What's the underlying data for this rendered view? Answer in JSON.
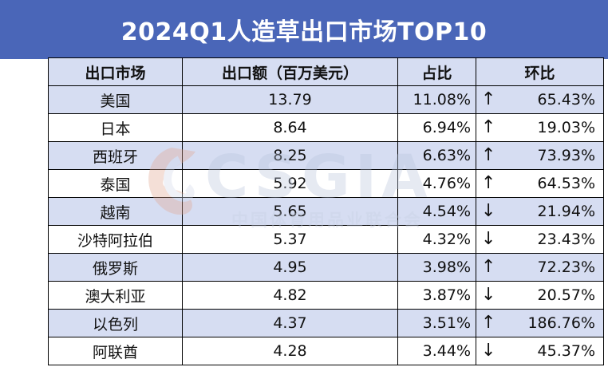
{
  "title": "2024Q1人造草出口市场TOP10",
  "watermark": {
    "logo_text": "CSGIA",
    "sub_text": "中国体育用品业联合会"
  },
  "colors": {
    "header_bg": "#4a66b8",
    "stripe": "#d6ddf2",
    "watermark": "#b8c4dc"
  },
  "chart_data": {
    "type": "table",
    "title": "2024Q1人造草出口市场TOP10",
    "columns": [
      "出口市场",
      "出口额（百万美元）",
      "占比",
      "环比"
    ],
    "rows": [
      {
        "market": "美国",
        "value": "13.79",
        "share": "11.08%",
        "dir": "up",
        "arrow": "↑",
        "change": "65.43%"
      },
      {
        "market": "日本",
        "value": "8.64",
        "share": "6.94%",
        "dir": "up",
        "arrow": "↑",
        "change": "19.03%"
      },
      {
        "market": "西班牙",
        "value": "8.25",
        "share": "6.63%",
        "dir": "up",
        "arrow": "↑",
        "change": "73.93%"
      },
      {
        "market": "泰国",
        "value": "5.92",
        "share": "4.76%",
        "dir": "up",
        "arrow": "↑",
        "change": "64.53%"
      },
      {
        "market": "越南",
        "value": "5.65",
        "share": "4.54%",
        "dir": "down",
        "arrow": "↓",
        "change": "21.94%"
      },
      {
        "market": "沙特阿拉伯",
        "value": "5.37",
        "share": "4.32%",
        "dir": "down",
        "arrow": "↓",
        "change": "23.43%"
      },
      {
        "market": "俄罗斯",
        "value": "4.95",
        "share": "3.98%",
        "dir": "up",
        "arrow": "↑",
        "change": "72.23%"
      },
      {
        "market": "澳大利亚",
        "value": "4.82",
        "share": "3.87%",
        "dir": "down",
        "arrow": "↓",
        "change": "20.57%"
      },
      {
        "market": "以色列",
        "value": "4.37",
        "share": "3.51%",
        "dir": "up",
        "arrow": "↑",
        "change": "186.76%"
      },
      {
        "market": "阿联酋",
        "value": "4.28",
        "share": "3.44%",
        "dir": "down",
        "arrow": "↓",
        "change": "45.37%"
      }
    ]
  }
}
